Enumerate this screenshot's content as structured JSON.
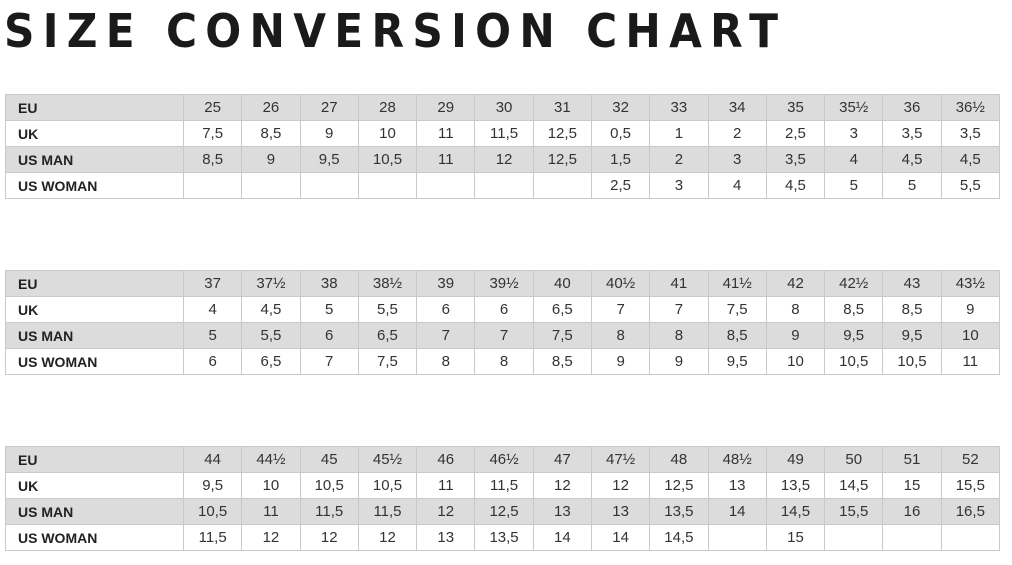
{
  "title": "SIZE CONVERSION CHART",
  "tables": [
    {
      "rows": [
        {
          "label": "EU",
          "values": [
            "25",
            "26",
            "27",
            "28",
            "29",
            "30",
            "31",
            "32",
            "33",
            "34",
            "35",
            "35½",
            "36",
            "36½"
          ]
        },
        {
          "label": "UK",
          "values": [
            "7,5",
            "8,5",
            "9",
            "10",
            "11",
            "11,5",
            "12,5",
            "0,5",
            "1",
            "2",
            "2,5",
            "3",
            "3,5",
            "3,5"
          ]
        },
        {
          "label": "US MAN",
          "values": [
            "8,5",
            "9",
            "9,5",
            "10,5",
            "11",
            "12",
            "12,5",
            "1,5",
            "2",
            "3",
            "3,5",
            "4",
            "4,5",
            "4,5"
          ]
        },
        {
          "label": "US WOMAN",
          "values": [
            "",
            "",
            "",
            "",
            "",
            "",
            "",
            "2,5",
            "3",
            "4",
            "4,5",
            "5",
            "5",
            "5,5"
          ]
        }
      ]
    },
    {
      "rows": [
        {
          "label": "EU",
          "values": [
            "37",
            "37½",
            "38",
            "38½",
            "39",
            "39½",
            "40",
            "40½",
            "41",
            "41½",
            "42",
            "42½",
            "43",
            "43½"
          ]
        },
        {
          "label": "UK",
          "values": [
            "4",
            "4,5",
            "5",
            "5,5",
            "6",
            "6",
            "6,5",
            "7",
            "7",
            "7,5",
            "8",
            "8,5",
            "8,5",
            "9"
          ]
        },
        {
          "label": "US MAN",
          "values": [
            "5",
            "5,5",
            "6",
            "6,5",
            "7",
            "7",
            "7,5",
            "8",
            "8",
            "8,5",
            "9",
            "9,5",
            "9,5",
            "10"
          ]
        },
        {
          "label": "US WOMAN",
          "values": [
            "6",
            "6,5",
            "7",
            "7,5",
            "8",
            "8",
            "8,5",
            "9",
            "9",
            "9,5",
            "10",
            "10,5",
            "10,5",
            "11"
          ]
        }
      ]
    },
    {
      "rows": [
        {
          "label": "EU",
          "values": [
            "44",
            "44½",
            "45",
            "45½",
            "46",
            "46½",
            "47",
            "47½",
            "48",
            "48½",
            "49",
            "50",
            "51",
            "52"
          ]
        },
        {
          "label": "UK",
          "values": [
            "9,5",
            "10",
            "10,5",
            "10,5",
            "11",
            "11,5",
            "12",
            "12",
            "12,5",
            "13",
            "13,5",
            "14,5",
            "15",
            "15,5"
          ]
        },
        {
          "label": "US MAN",
          "values": [
            "10,5",
            "11",
            "11,5",
            "11,5",
            "12",
            "12,5",
            "13",
            "13",
            "13,5",
            "14",
            "14,5",
            "15,5",
            "16",
            "16,5"
          ]
        },
        {
          "label": "US WOMAN",
          "values": [
            "11,5",
            "12",
            "12",
            "12",
            "13",
            "13,5",
            "14",
            "14",
            "14,5",
            "",
            "15",
            "",
            "",
            ""
          ]
        }
      ]
    }
  ]
}
